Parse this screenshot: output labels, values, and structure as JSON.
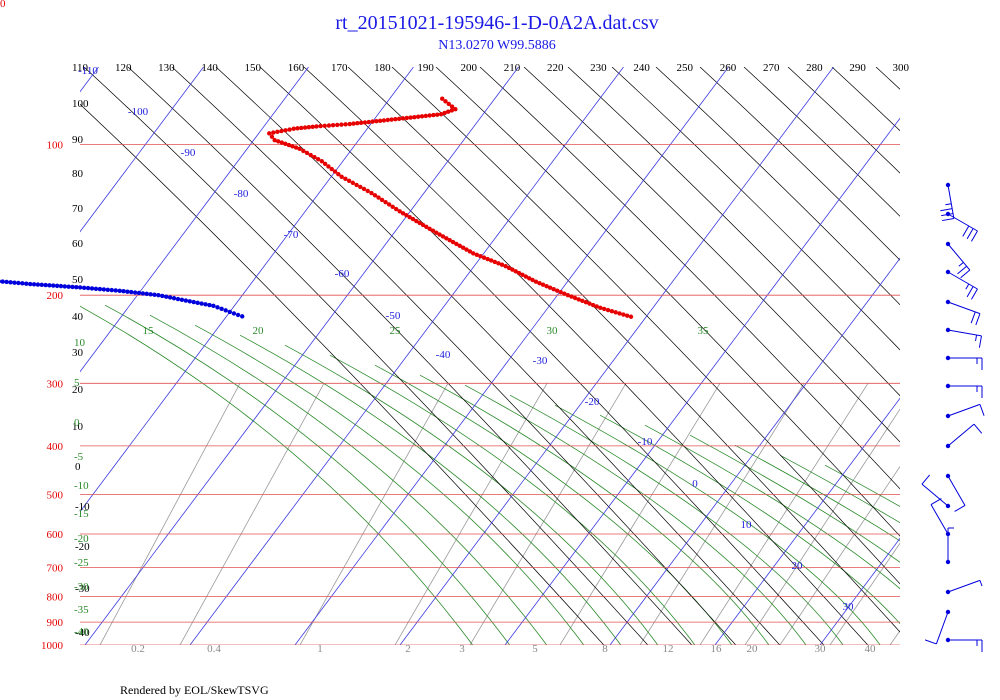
{
  "corner_label": "0",
  "footer": "Rendered by EOL/SkewTSVG",
  "chart_data": {
    "type": "scatter",
    "title": "rt_20151021-195946-1-D-0A2A.dat.csv",
    "subtitle": "N13.0270 W99.5886",
    "colors": {
      "isobar": "#e05050",
      "isotherm": "#3a3ae0",
      "dry_adiabat": "#000000",
      "moist_adiabat": "#2a8a2a",
      "mixing_ratio": "#9a9a9a",
      "temperature": "#e60000",
      "dewpoint": "#0000dd",
      "wind": "#0000dd"
    },
    "theta_tick_labels": [
      "110",
      "120",
      "130",
      "140",
      "150",
      "160",
      "170",
      "180",
      "190",
      "200",
      "210",
      "220",
      "230",
      "240",
      "250",
      "260",
      "270",
      "280",
      "290",
      "300"
    ],
    "theta_left_labels": [
      "100",
      "90",
      "80",
      "70",
      "60",
      "50",
      "40",
      "30",
      "20",
      "10",
      "0",
      "-10",
      "-20",
      "-30",
      "-40"
    ],
    "pressure_labels": [
      "100",
      "200",
      "300",
      "400",
      "500",
      "600",
      "700",
      "800",
      "900",
      "1000"
    ],
    "pressure_levels": [
      100,
      200,
      300,
      400,
      500,
      600,
      700,
      800,
      900,
      1000
    ],
    "isotherm_labels": [
      "-110",
      "-100",
      "-90",
      "-80",
      "-70",
      "-60",
      "-50",
      "-40",
      "-30",
      "-20",
      "-10",
      "0",
      "10",
      "20",
      "30"
    ],
    "moist_top_labels": [
      "15",
      "20",
      "25",
      "30",
      "35"
    ],
    "moist_left_labels": [
      "10",
      "5",
      "0",
      "-5",
      "-10",
      "-15",
      "-20",
      "-25",
      "-30",
      "-35",
      "-40"
    ],
    "mixing_ratio_labels": [
      "0.2",
      "0.4",
      "1",
      "2",
      "3",
      "5",
      "8",
      "12",
      "16",
      "20",
      "30",
      "40"
    ],
    "temperature_trace": [
      {
        "p": 81,
        "t": -75
      },
      {
        "p": 85,
        "t": -73
      },
      {
        "p": 87,
        "t": -74
      },
      {
        "p": 88,
        "t": -76
      },
      {
        "p": 89,
        "t": -78
      },
      {
        "p": 90,
        "t": -80
      },
      {
        "p": 91,
        "t": -82
      },
      {
        "p": 92,
        "t": -85
      },
      {
        "p": 93,
        "t": -87
      },
      {
        "p": 95,
        "t": -89
      },
      {
        "p": 98,
        "t": -88
      },
      {
        "p": 102,
        "t": -85
      },
      {
        "p": 108,
        "t": -82
      },
      {
        "p": 116,
        "t": -79
      },
      {
        "p": 125,
        "t": -75
      },
      {
        "p": 136,
        "t": -71
      },
      {
        "p": 150,
        "t": -66
      },
      {
        "p": 165,
        "t": -61
      },
      {
        "p": 175,
        "t": -57
      },
      {
        "p": 188,
        "t": -53
      },
      {
        "p": 200,
        "t": -49
      },
      {
        "p": 212,
        "t": -45
      },
      {
        "p": 222,
        "t": -41
      }
    ],
    "dewpoint_trace": [
      {
        "p": 187,
        "t": -105
      },
      {
        "p": 190,
        "t": -101
      },
      {
        "p": 193,
        "t": -96
      },
      {
        "p": 196,
        "t": -92
      },
      {
        "p": 200,
        "t": -88
      },
      {
        "p": 205,
        "t": -85
      },
      {
        "p": 210,
        "t": -82
      },
      {
        "p": 216,
        "t": -80
      },
      {
        "p": 222,
        "t": -78
      }
    ],
    "winds": [
      {
        "y": 185,
        "dir": 350,
        "speed": 35
      },
      {
        "y": 214,
        "dir": 300,
        "speed": 30
      },
      {
        "y": 244,
        "dir": 320,
        "speed": 25
      },
      {
        "y": 272,
        "dir": 300,
        "speed": 25
      },
      {
        "y": 302,
        "dir": 290,
        "speed": 20
      },
      {
        "y": 330,
        "dir": 280,
        "speed": 15
      },
      {
        "y": 358,
        "dir": 270,
        "speed": 15
      },
      {
        "y": 386,
        "dir": 270,
        "speed": 15
      },
      {
        "y": 416,
        "dir": 250,
        "speed": 10
      },
      {
        "y": 446,
        "dir": 230,
        "speed": 10
      },
      {
        "y": 476,
        "dir": 330,
        "speed": 10
      },
      {
        "y": 506,
        "dir": 130,
        "speed": 10
      },
      {
        "y": 534,
        "dir": 150,
        "speed": 10
      },
      {
        "y": 562,
        "dir": 180,
        "speed": 5
      },
      {
        "y": 592,
        "dir": 250,
        "speed": 5
      },
      {
        "y": 612,
        "dir": 20,
        "speed": 10
      },
      {
        "y": 640,
        "dir": 270,
        "speed": 15
      }
    ]
  }
}
